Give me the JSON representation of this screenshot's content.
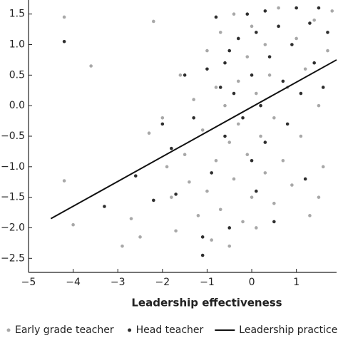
{
  "chart_data": {
    "type": "scatter",
    "xlabel": "Leadership effectiveness",
    "xlim": [
      -5,
      1.9
    ],
    "ylim": [
      -2.73,
      1.73
    ],
    "xticks": [
      {
        "value": -5,
        "label": "−5"
      },
      {
        "value": -4,
        "label": "−4"
      },
      {
        "value": -3,
        "label": "−3"
      },
      {
        "value": -2,
        "label": "−2"
      },
      {
        "value": -1,
        "label": "−1"
      },
      {
        "value": 0,
        "label": "0"
      },
      {
        "value": 1,
        "label": "1"
      }
    ],
    "yticks": [
      {
        "value": 1.5,
        "label": "1.5"
      },
      {
        "value": 1.0,
        "label": "1.0"
      },
      {
        "value": 0.5,
        "label": "0.5"
      },
      {
        "value": 0.0,
        "label": "0.0"
      },
      {
        "value": -0.5,
        "label": "−0.5"
      },
      {
        "value": -1.0,
        "label": "−1.0"
      },
      {
        "value": -1.5,
        "label": "−1.5"
      },
      {
        "value": -2.0,
        "label": "−2.0"
      },
      {
        "value": -2.5,
        "label": "−2.5"
      }
    ],
    "series": [
      {
        "name": "Early grade teacher",
        "color": "#a8a8a8",
        "x": [
          -4.2,
          -4.2,
          -3.6,
          -4.0,
          -2.2,
          -2.9,
          -2.5,
          -2.7,
          -2.3,
          -2.0,
          -1.9,
          -1.8,
          -1.7,
          -1.6,
          -1.5,
          -1.4,
          -1.3,
          -1.2,
          -1.1,
          -1.0,
          -1.0,
          -0.9,
          -0.8,
          -0.8,
          -0.7,
          -0.7,
          -0.6,
          -0.5,
          -0.5,
          -0.4,
          -0.4,
          -0.3,
          -0.3,
          -0.2,
          -0.1,
          -0.1,
          0.0,
          0.0,
          0.1,
          0.1,
          0.2,
          0.3,
          0.3,
          0.4,
          0.5,
          0.5,
          0.6,
          0.7,
          0.8,
          0.9,
          1.0,
          1.1,
          1.2,
          1.3,
          1.4,
          1.5,
          1.6,
          1.7,
          1.8,
          1.5
        ],
        "values": [
          1.45,
          -1.23,
          0.65,
          -1.95,
          1.38,
          -2.3,
          -2.15,
          -1.85,
          -0.45,
          -0.2,
          -1.0,
          -1.5,
          -2.05,
          0.5,
          -0.8,
          -1.25,
          0.1,
          -1.8,
          -0.4,
          0.9,
          -1.4,
          -2.2,
          0.3,
          -0.9,
          1.2,
          -1.7,
          0.0,
          -0.6,
          -2.3,
          1.5,
          -1.2,
          0.4,
          -0.3,
          -1.9,
          0.8,
          -0.8,
          1.3,
          -1.5,
          0.2,
          -2.0,
          -0.5,
          1.0,
          -1.1,
          0.5,
          -0.2,
          -1.6,
          1.6,
          -0.9,
          0.3,
          -1.3,
          1.1,
          -0.5,
          0.6,
          -1.8,
          1.4,
          0.0,
          -1.0,
          0.9,
          1.55,
          -1.5
        ]
      },
      {
        "name": "Head teacher",
        "color": "#2e2e2e",
        "x": [
          -4.2,
          -3.3,
          -2.6,
          -2.2,
          -2.0,
          -1.8,
          -1.7,
          -1.5,
          -1.3,
          -1.1,
          -1.0,
          -0.9,
          -0.8,
          -0.7,
          -0.6,
          -0.5,
          -0.5,
          -0.4,
          -0.3,
          -0.2,
          -0.1,
          0.0,
          0.0,
          0.1,
          0.2,
          0.3,
          0.3,
          0.4,
          0.5,
          0.6,
          0.7,
          0.8,
          0.9,
          1.0,
          1.1,
          1.2,
          1.3,
          1.4,
          1.5,
          1.6,
          1.7,
          -1.1,
          0.1,
          -0.6
        ],
        "values": [
          1.05,
          -1.65,
          -1.15,
          -1.55,
          -0.3,
          -0.7,
          -1.45,
          0.5,
          -0.2,
          -2.15,
          0.6,
          -1.1,
          1.45,
          0.3,
          -0.5,
          0.9,
          -2.0,
          0.2,
          1.1,
          -0.2,
          1.5,
          0.5,
          -0.9,
          1.2,
          0.0,
          1.55,
          -0.6,
          0.8,
          -1.9,
          1.3,
          0.4,
          -0.3,
          1.0,
          1.6,
          0.2,
          -1.2,
          1.35,
          0.7,
          1.6,
          0.3,
          1.2,
          -2.45,
          -1.4,
          0.7
        ]
      }
    ],
    "fit": {
      "name": "Leadership practices fit",
      "color": "#111111",
      "x": [
        -4.5,
        1.9
      ],
      "values": [
        -1.85,
        0.75
      ]
    }
  }
}
